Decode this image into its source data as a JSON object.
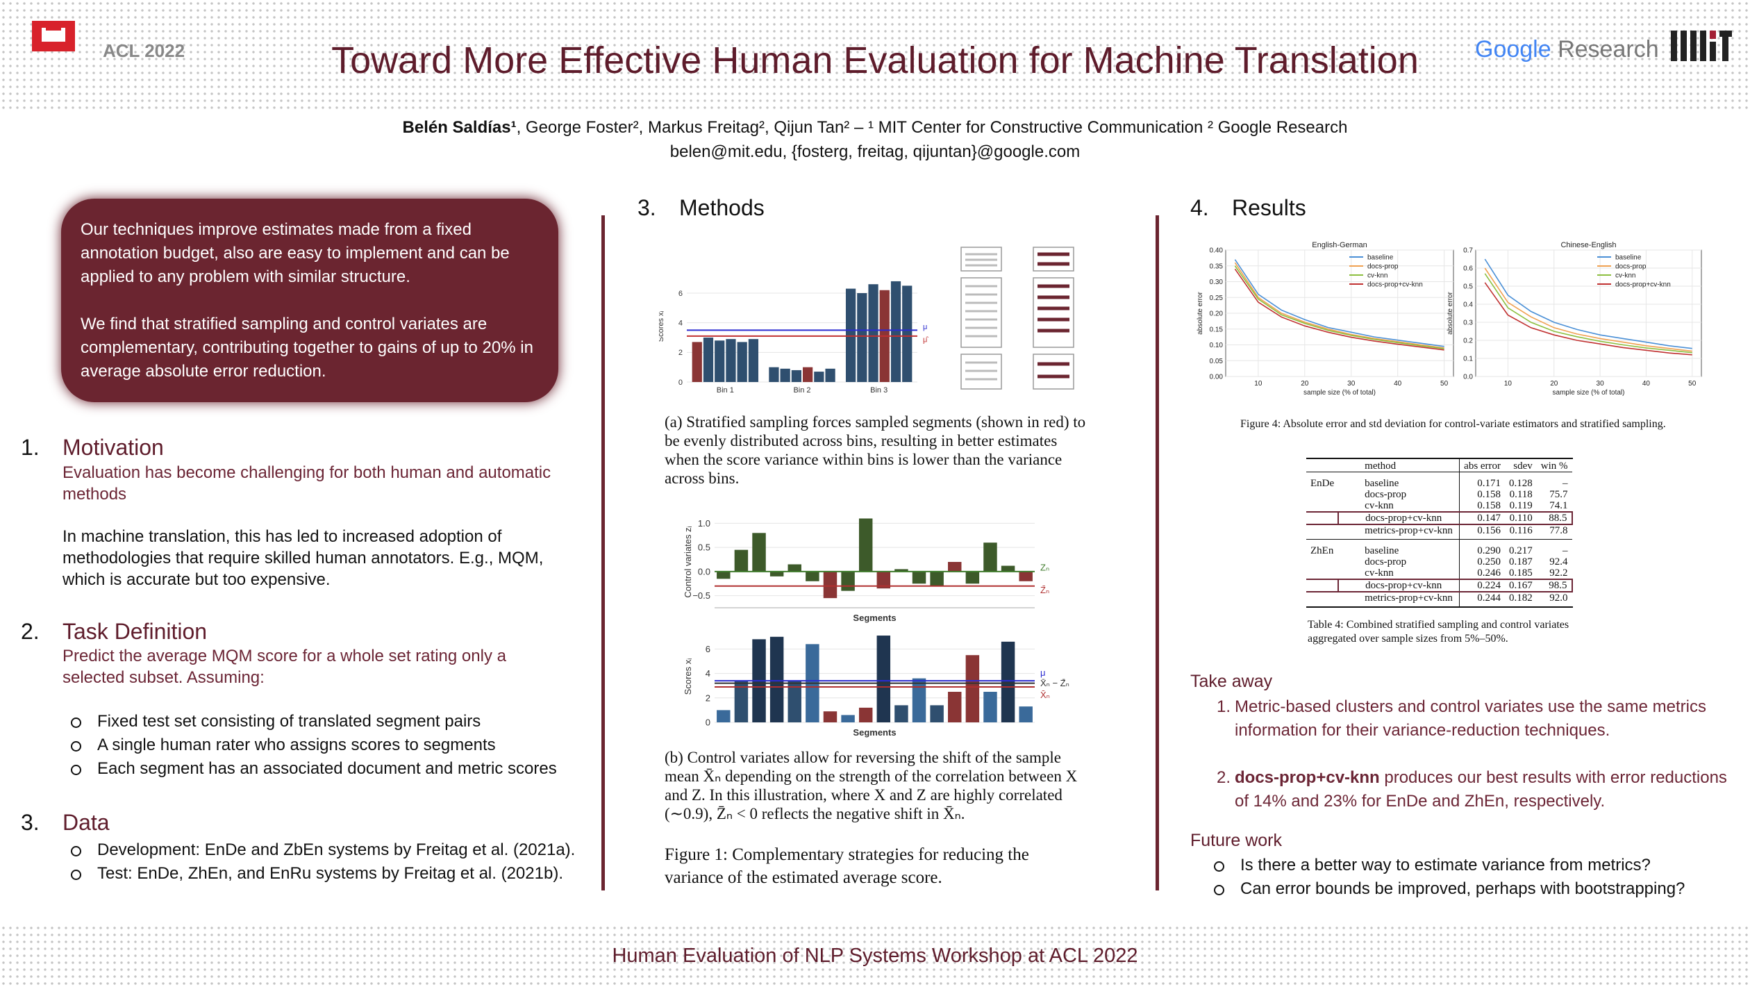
{
  "header": {
    "title": "Toward More Effective Human Evaluation for Machine Translation",
    "acl_logo": "ACL 2022",
    "google_logo": "Google",
    "google_logo_suffix": "Research",
    "lead_author": "Belén Saldías¹",
    "authors": ", George Foster², Markus Freitag², Qijun Tan² –  ¹ MIT Center for Constructive Communication ² Google Research",
    "emails": "belen@mit.edu, {fosterg, freitag, qijuntan}@google.com"
  },
  "summary": [
    "Our techniques improve estimates made from a fixed annotation budget, also are easy to implement and can be applied to any problem with similar structure.",
    "We find that stratified sampling and control variates are complementary, contributing together to gains of up to 20% in average absolute error reduction."
  ],
  "motivation": {
    "number": "1.",
    "heading": "Motivation",
    "subtitle": "Evaluation has become challenging for both human and automatic methods",
    "body": "In machine translation, this has led to increased adoption of methodologies that require skilled human annotators. E.g., MQM, which is accurate but too expensive."
  },
  "task": {
    "number": "2.",
    "heading": "Task Definition",
    "subtitle": "Predict the average MQM score for a whole set rating only a selected subset. Assuming:",
    "items": [
      "Fixed test set consisting of translated segment pairs",
      "A single human rater who assigns scores to segments",
      "Each segment has an associated document and metric scores"
    ]
  },
  "data": {
    "number": "3.",
    "heading": "Data",
    "items": [
      "Development: EnDe and ZbEn systems by Freitag et al. (2021a).",
      "Test: EnDe, ZhEn, and EnRu systems by Freitag et al. (2021b)."
    ]
  },
  "methods": {
    "number": "3.",
    "heading": "Methods",
    "figure_a": {
      "type": "bar",
      "ylabel": "Scores xᵢ",
      "ylim": [
        0,
        7.5
      ],
      "yticks": [
        0,
        2,
        4,
        6
      ],
      "bins": [
        {
          "label": "Bin 1",
          "values": [
            2.7,
            3.0,
            2.8,
            2.9,
            2.7,
            2.9
          ],
          "colors": [
            "#8a3535",
            "#2f4f6f",
            "#2f4f6f",
            "#2f4f6f",
            "#2f4f6f",
            "#2f4f6f"
          ]
        },
        {
          "label": "Bin 2",
          "values": [
            1.0,
            0.9,
            0.8,
            1.0,
            0.7,
            0.9
          ],
          "colors": [
            "#2f4f6f",
            "#2f4f6f",
            "#2f4f6f",
            "#8a3535",
            "#2f4f6f",
            "#2f4f6f"
          ]
        },
        {
          "label": "Bin 3",
          "values": [
            6.3,
            6.0,
            6.6,
            6.2,
            6.8,
            6.5
          ],
          "colors": [
            "#2f4f6f",
            "#2f4f6f",
            "#2f4f6f",
            "#8a3535",
            "#2f4f6f",
            "#2f4f6f"
          ]
        }
      ],
      "lines": [
        {
          "name": "μ",
          "value": 3.5,
          "color": "#2b2bd0"
        },
        {
          "name": "μ̂",
          "value": 3.1,
          "color": "#c03030"
        }
      ]
    },
    "caption_a": "(a) Stratified sampling forces sampled segments (shown in red) to be evenly distributed across bins, resulting in better estimates when the score variance within bins is lower than the variance across bins.",
    "figure_b_top": {
      "type": "bar",
      "ylabel": "Control variates zᵢ",
      "xlabel": "Segments",
      "ylim": [
        -0.75,
        1.15
      ],
      "yticks": [
        {
          "value": -0.5,
          "label": "−0.5"
        },
        {
          "value": 0,
          "label": "0.0"
        },
        0.5,
        {
          "value": 1,
          "label": "1.0"
        }
      ],
      "values": [
        -0.15,
        0.45,
        0.8,
        -0.1,
        0.15,
        -0.2,
        -0.55,
        -0.4,
        1.1,
        -0.35,
        0.05,
        -0.25,
        -0.3,
        0.2,
        -0.25,
        0.6,
        0.12,
        -0.2
      ],
      "colors": [
        "#3d5a2a",
        "#3d5a2a",
        "#3d5a2a",
        "#3d5a2a",
        "#3d5a2a",
        "#3d5a2a",
        "#8a3535",
        "#3d5a2a",
        "#3d5a2a",
        "#8a3535",
        "#3d5a2a",
        "#3d5a2a",
        "#3d5a2a",
        "#8a3535",
        "#3d5a2a",
        "#3d5a2a",
        "#3d5a2a",
        "#8a3535"
      ],
      "lines": [
        {
          "name": "Zₙ",
          "value": 0,
          "color": "#3d7a2a"
        },
        {
          "name": "Z̄ₙ",
          "value": -0.3,
          "color": "#b03030"
        }
      ]
    },
    "figure_b_bottom": {
      "type": "bar",
      "ylabel": "Scores xᵢ",
      "xlabel": "Segments",
      "ylim": [
        0,
        7.5
      ],
      "yticks": [
        0,
        2,
        4,
        6
      ],
      "values": [
        1.0,
        3.4,
        6.8,
        7.0,
        3.4,
        6.4,
        0.9,
        0.6,
        1.2,
        7.1,
        1.4,
        3.6,
        1.4,
        2.5,
        5.5,
        2.5,
        6.6,
        1.3
      ],
      "colors": [
        "#3a6a9a",
        "#2f4f6f",
        "#1f3550",
        "#1f3550",
        "#2f4f6f",
        "#3a6a9a",
        "#8a3535",
        "#3a6a9a",
        "#8a3535",
        "#1f3550",
        "#2f4f6f",
        "#3a6a9a",
        "#2f4f6f",
        "#8a3535",
        "#8a3535",
        "#3a6a9a",
        "#1f3550",
        "#3a6a9a"
      ],
      "lines": [
        {
          "name": "μ",
          "value": 3.4,
          "color": "#2b2bd0"
        },
        {
          "name": "X̄ₙ − Z̄ₙ",
          "value": 3.2,
          "color": "#333333"
        },
        {
          "name": "X̄ₙ",
          "value": 2.9,
          "color": "#b03030"
        }
      ]
    },
    "caption_b": "(b) Control variates allow for reversing the shift of the sample mean X̄ₙ depending on the strength of the correlation between X and Z. In this illustration, where X and Z are highly correlated (∼0.9), Z̄ₙ < 0 reflects the negative shift in X̄ₙ.",
    "caption": "Figure 1:  Complementary strategies for reducing the variance of the estimated average score."
  },
  "results": {
    "number": "4.",
    "heading": "Results",
    "figure_4": {
      "type": "line",
      "panels": [
        {
          "title": "English-German",
          "ylabel": "absolute error",
          "xlabel": "sample size (% of total)",
          "xlim": [
            3,
            52
          ],
          "ylim": [
            0,
            0.4
          ],
          "xticks": [
            10,
            20,
            30,
            40,
            50
          ],
          "yticks": [
            {
              "value": 0,
              "label": "0.00"
            },
            0.05,
            {
              "value": 0.1,
              "label": "0.10"
            },
            0.15,
            {
              "value": 0.2,
              "label": "0.20"
            },
            0.25,
            {
              "value": 0.3,
              "label": "0.30"
            },
            0.35,
            {
              "value": 0.4,
              "label": "0.40"
            }
          ],
          "x": [
            5,
            10,
            15,
            20,
            25,
            30,
            35,
            40,
            45,
            50
          ],
          "series": [
            {
              "name": "baseline",
              "color": "#4a8fd6",
              "values": [
                0.37,
                0.26,
                0.21,
                0.18,
                0.155,
                0.14,
                0.125,
                0.115,
                0.105,
                0.095
              ]
            },
            {
              "name": "docs-prop",
              "color": "#f0a050",
              "values": [
                0.36,
                0.25,
                0.2,
                0.172,
                0.15,
                0.133,
                0.12,
                0.11,
                0.1,
                0.09
              ]
            },
            {
              "name": "cv-knn",
              "color": "#8cbf3f",
              "values": [
                0.35,
                0.245,
                0.195,
                0.168,
                0.146,
                0.13,
                0.117,
                0.107,
                0.097,
                0.088
              ]
            },
            {
              "name": "docs-prop+cv-knn",
              "color": "#c03030",
              "values": [
                0.34,
                0.235,
                0.188,
                0.16,
                0.14,
                0.124,
                0.112,
                0.102,
                0.093,
                0.084
              ]
            }
          ]
        },
        {
          "title": "Chinese-English",
          "ylabel": "absolute error",
          "xlabel": "sample size (% of total)",
          "xlim": [
            3,
            52
          ],
          "ylim": [
            0,
            0.7
          ],
          "xticks": [
            10,
            20,
            30,
            40,
            50
          ],
          "yticks": [
            {
              "value": 0,
              "label": "0.0"
            },
            0.1,
            0.2,
            0.3,
            0.4,
            0.5,
            0.6,
            0.7
          ],
          "x": [
            5,
            10,
            15,
            20,
            25,
            30,
            35,
            40,
            45,
            50
          ],
          "series": [
            {
              "name": "baseline",
              "color": "#4a8fd6",
              "values": [
                0.65,
                0.45,
                0.36,
                0.3,
                0.26,
                0.23,
                0.21,
                0.19,
                0.17,
                0.155
              ]
            },
            {
              "name": "docs-prop",
              "color": "#f0a050",
              "values": [
                0.6,
                0.41,
                0.33,
                0.27,
                0.235,
                0.21,
                0.19,
                0.17,
                0.155,
                0.14
              ]
            },
            {
              "name": "cv-knn",
              "color": "#8cbf3f",
              "values": [
                0.57,
                0.38,
                0.3,
                0.25,
                0.22,
                0.195,
                0.175,
                0.158,
                0.145,
                0.132
              ]
            },
            {
              "name": "docs-prop+cv-knn",
              "color": "#c03030",
              "values": [
                0.52,
                0.34,
                0.27,
                0.23,
                0.2,
                0.18,
                0.16,
                0.145,
                0.13,
                0.12
              ]
            }
          ]
        }
      ]
    },
    "figure_4_caption": "Figure 4: Absolute error and std deviation for control-variate estimators and stratified sampling.",
    "table": {
      "columns": [
        "method",
        "abs error",
        "sdev",
        "win %"
      ],
      "groups": [
        {
          "name": "EnDe",
          "highlight_row": 3,
          "rows": [
            [
              "baseline",
              "0.171",
              "0.128",
              "–"
            ],
            [
              "docs-prop",
              "0.158",
              "0.118",
              "75.7"
            ],
            [
              "cv-knn",
              "0.158",
              "0.119",
              "74.1"
            ],
            [
              "docs-prop+cv-knn",
              "0.147",
              "0.110",
              "88.5"
            ],
            [
              "metrics-prop+cv-knn",
              "0.156",
              "0.116",
              "77.8"
            ]
          ]
        },
        {
          "name": "ZhEn",
          "highlight_row": 3,
          "rows": [
            [
              "baseline",
              "0.290",
              "0.217",
              "–"
            ],
            [
              "docs-prop",
              "0.250",
              "0.187",
              "92.4"
            ],
            [
              "cv-knn",
              "0.246",
              "0.185",
              "92.2"
            ],
            [
              "docs-prop+cv-knn",
              "0.224",
              "0.167",
              "98.5"
            ],
            [
              "metrics-prop+cv-knn",
              "0.244",
              "0.182",
              "92.0"
            ]
          ]
        }
      ]
    },
    "table_caption": "Table 4: Combined stratified sampling and control variates aggregated over sample sizes from 5%–50%.",
    "takeaway": {
      "heading": "Take away",
      "items": [
        {
          "number": "1.",
          "text": "Metric-based clusters and control variates use the same metrics information for their variance-reduction techniques."
        },
        {
          "number": "2.",
          "bold": "docs-prop+cv-knn",
          "text": " produces our best results with error reductions of 14% and 23% for EnDe and ZhEn, respectively."
        }
      ]
    },
    "future": {
      "heading": "Future work",
      "items": [
        "Is there a better way to estimate variance from metrics?",
        "Can error bounds be improved, perhaps with bootstrapping?"
      ]
    }
  },
  "footer": "Human Evaluation of NLP Systems Workshop at ACL 2022"
}
